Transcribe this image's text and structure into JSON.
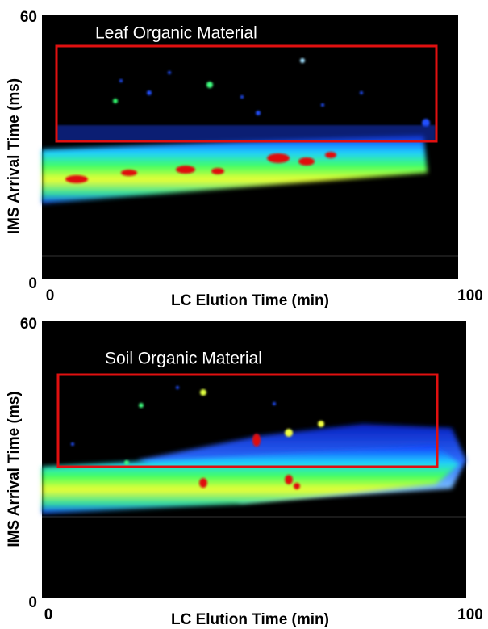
{
  "chart_data": [
    {
      "type": "heatmap",
      "title": "Leaf Organic Material",
      "xlabel": "LC Elution Time (min)",
      "ylabel": "IMS Arrival Time (ms)",
      "xlim": [
        0,
        100
      ],
      "ylim": [
        0,
        60
      ],
      "xticks": [
        0,
        100
      ],
      "yticks": [
        0,
        60
      ]
    },
    {
      "type": "heatmap",
      "title": "Soil Organic Material",
      "xlabel": "LC Elution Time (min)",
      "ylabel": "IMS Arrival Time (ms)",
      "xlim": [
        0,
        100
      ],
      "ylim": [
        0,
        60
      ],
      "xticks": [
        0,
        100
      ],
      "yticks": [
        0,
        60
      ]
    }
  ]
}
